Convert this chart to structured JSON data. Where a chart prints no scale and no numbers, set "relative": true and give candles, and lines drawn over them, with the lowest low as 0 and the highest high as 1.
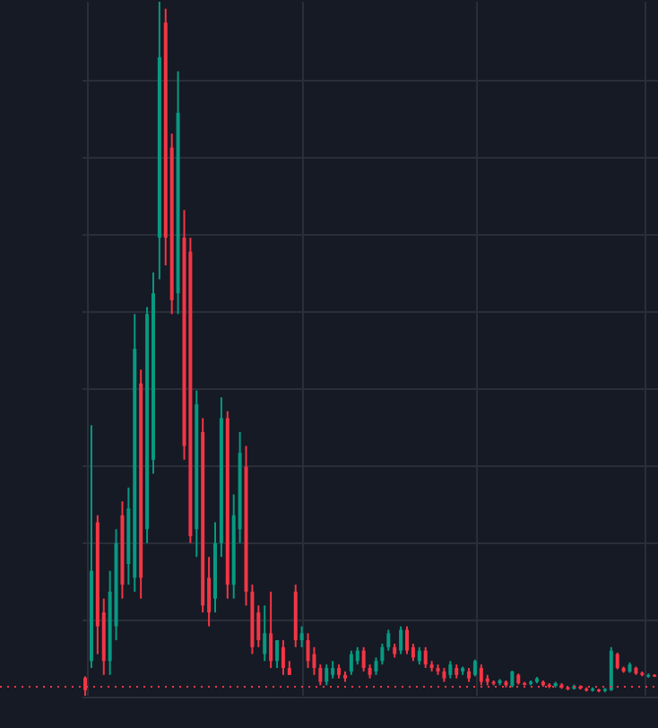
{
  "chart_data": {
    "type": "candlestick",
    "relative": true,
    "grid": true,
    "categories": [
      null,
      null,
      null,
      null,
      null,
      null,
      null,
      null,
      null,
      null,
      null,
      null,
      null,
      null,
      null,
      null,
      null,
      null,
      null,
      null,
      null,
      null,
      null,
      null,
      null,
      null,
      null,
      null,
      null,
      null,
      null,
      null,
      null,
      null,
      null,
      null,
      null,
      null,
      null,
      null,
      null,
      null,
      null,
      null,
      null,
      null,
      null,
      null,
      null,
      null,
      null,
      null,
      null,
      null,
      null,
      null,
      null,
      null,
      null,
      null,
      null,
      null,
      null,
      null,
      null,
      null,
      null,
      null,
      null,
      null,
      null,
      null,
      null,
      null,
      null,
      null,
      null,
      null,
      null,
      null,
      null,
      null,
      null,
      null,
      null,
      null,
      null,
      null,
      null,
      null,
      null,
      null,
      null
    ],
    "ohlc": [
      [
        0.026,
        0.028,
        0,
        0.008
      ],
      [
        0.05,
        0.39,
        0.04,
        0.18
      ],
      [
        0.25,
        0.26,
        0.06,
        0.1
      ],
      [
        0.12,
        0.14,
        0.03,
        0.05
      ],
      [
        0.05,
        0.18,
        0.03,
        0.15
      ],
      [
        0.1,
        0.24,
        0.08,
        0.22
      ],
      [
        0.26,
        0.28,
        0.14,
        0.16
      ],
      [
        0.19,
        0.3,
        0.16,
        0.27
      ],
      [
        0.17,
        0.55,
        0.15,
        0.5
      ],
      [
        0.45,
        0.47,
        0.14,
        0.17
      ],
      [
        0.24,
        0.56,
        0.22,
        0.55
      ],
      [
        0.34,
        0.61,
        0.32,
        0.58
      ],
      [
        0.66,
        1,
        0.6,
        0.92
      ],
      [
        0.97,
        0.99,
        0.62,
        0.66
      ],
      [
        0.79,
        0.81,
        0.55,
        0.57
      ],
      [
        0.58,
        0.9,
        0.55,
        0.84
      ],
      [
        0.66,
        0.7,
        0.34,
        0.36
      ],
      [
        0.64,
        0.66,
        0.22,
        0.23
      ],
      [
        0.24,
        0.44,
        0.2,
        0.42
      ],
      [
        0.38,
        0.4,
        0.12,
        0.13
      ],
      [
        0.17,
        0.2,
        0.1,
        0.12
      ],
      [
        0.14,
        0.25,
        0.12,
        0.22
      ],
      [
        0.22,
        0.43,
        0.2,
        0.4
      ],
      [
        0.4,
        0.41,
        0.14,
        0.16
      ],
      [
        0.16,
        0.29,
        0.14,
        0.26
      ],
      [
        0.24,
        0.38,
        0.22,
        0.35
      ],
      [
        0.33,
        0.36,
        0.13,
        0.15
      ],
      [
        0.15,
        0.16,
        0.06,
        0.07
      ],
      [
        0.12,
        0.13,
        0.07,
        0.08
      ],
      [
        0.06,
        0.13,
        0.05,
        0.09
      ],
      [
        0.09,
        0.15,
        0.04,
        0.05
      ],
      [
        0.05,
        0.08,
        0.04,
        0.08
      ],
      [
        0.07,
        0.08,
        0.03,
        0.04
      ],
      [
        0.04,
        0.05,
        0.03,
        0.03
      ],
      [
        0.15,
        0.16,
        0.07,
        0.08
      ],
      [
        0.08,
        0.1,
        0.07,
        0.09
      ],
      [
        0.08,
        0.09,
        0.04,
        0.05
      ],
      [
        0.06,
        0.07,
        0.03,
        0.04
      ],
      [
        0.04,
        0.045,
        0.015,
        0.02
      ],
      [
        0.02,
        0.045,
        0.015,
        0.04
      ],
      [
        0.03,
        0.05,
        0.025,
        0.04
      ],
      [
        0.04,
        0.045,
        0.025,
        0.03
      ],
      [
        0.03,
        0.035,
        0.02,
        0.025
      ],
      [
        0.035,
        0.065,
        0.03,
        0.06
      ],
      [
        0.05,
        0.07,
        0.045,
        0.065
      ],
      [
        0.065,
        0.07,
        0.035,
        0.04
      ],
      [
        0.04,
        0.045,
        0.025,
        0.03
      ],
      [
        0.035,
        0.055,
        0.03,
        0.05
      ],
      [
        0.05,
        0.075,
        0.045,
        0.07
      ],
      [
        0.07,
        0.095,
        0.065,
        0.09
      ],
      [
        0.07,
        0.075,
        0.055,
        0.06
      ],
      [
        0.065,
        0.1,
        0.06,
        0.095
      ],
      [
        0.095,
        0.1,
        0.06,
        0.065
      ],
      [
        0.07,
        0.075,
        0.05,
        0.055
      ],
      [
        0.05,
        0.07,
        0.045,
        0.065
      ],
      [
        0.065,
        0.07,
        0.04,
        0.045
      ],
      [
        0.045,
        0.05,
        0.035,
        0.04
      ],
      [
        0.04,
        0.045,
        0.03,
        0.035
      ],
      [
        0.035,
        0.04,
        0.02,
        0.025
      ],
      [
        0.03,
        0.05,
        0.025,
        0.045
      ],
      [
        0.04,
        0.045,
        0.025,
        0.03
      ],
      [
        0.035,
        0.042,
        0.03,
        0.04
      ],
      [
        0.035,
        0.04,
        0.02,
        0.025
      ],
      [
        0.03,
        0.052,
        0.028,
        0.05
      ],
      [
        0.04,
        0.045,
        0.015,
        0.02
      ],
      [
        0.025,
        0.03,
        0.015,
        0.02
      ],
      [
        0.02,
        0.022,
        0.015,
        0.018
      ],
      [
        0.018,
        0.024,
        0.015,
        0.022
      ],
      [
        0.02,
        0.022,
        0.012,
        0.015
      ],
      [
        0.014,
        0.036,
        0.012,
        0.035
      ],
      [
        0.03,
        0.032,
        0.016,
        0.018
      ],
      [
        0.018,
        0.02,
        0.015,
        0.017
      ],
      [
        0.017,
        0.022,
        0.015,
        0.02
      ],
      [
        0.02,
        0.027,
        0.018,
        0.025
      ],
      [
        0.02,
        0.022,
        0.013,
        0.015
      ],
      [
        0.016,
        0.018,
        0.011,
        0.013
      ],
      [
        0.014,
        0.02,
        0.012,
        0.018
      ],
      [
        0.016,
        0.018,
        0.01,
        0.012
      ],
      [
        0.012,
        0.013,
        0.008,
        0.01
      ],
      [
        0.01,
        0.016,
        0.009,
        0.014
      ],
      [
        0.013,
        0.015,
        0.009,
        0.011
      ],
      [
        0.01,
        0.012,
        0.006,
        0.008
      ],
      [
        0.008,
        0.012,
        0.006,
        0.01
      ],
      [
        0.009,
        0.01,
        0.005,
        0.007
      ],
      [
        0.007,
        0.011,
        0.005,
        0.01
      ],
      [
        0.008,
        0.07,
        0.007,
        0.065
      ],
      [
        0.06,
        0.062,
        0.038,
        0.04
      ],
      [
        0.04,
        0.042,
        0.033,
        0.035
      ],
      [
        0.035,
        0.048,
        0.033,
        0.045
      ],
      [
        0.04,
        0.042,
        0.03,
        0.032
      ],
      [
        0.033,
        0.035,
        0.028,
        0.03
      ],
      [
        0.028,
        0.032,
        0.026,
        0.03
      ],
      [
        0.03,
        0.031,
        0.027,
        0.029
      ]
    ],
    "ref_lines": [
      {
        "axis": "y",
        "value": 0.013,
        "color": "#f23645",
        "line_style": "dotted"
      }
    ]
  }
}
